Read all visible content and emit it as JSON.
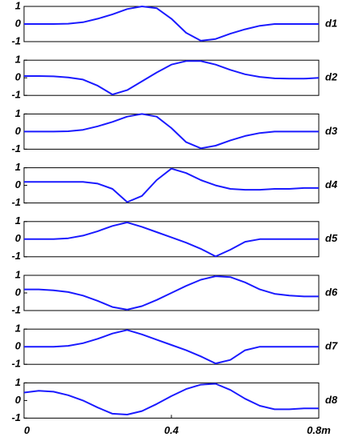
{
  "chart_data": [
    {
      "type": "line",
      "label": "d1",
      "color": "#1a1aff",
      "xlim": [
        0,
        0.8
      ],
      "ylim": [
        -1,
        1
      ],
      "yticks": [
        1,
        0,
        -1
      ],
      "x": [
        0,
        0.04,
        0.08,
        0.12,
        0.16,
        0.2,
        0.24,
        0.28,
        0.32,
        0.36,
        0.4,
        0.44,
        0.48,
        0.52,
        0.56,
        0.6,
        0.64,
        0.68,
        0.72,
        0.76,
        0.8
      ],
      "values": [
        0,
        0,
        0,
        0.02,
        0.1,
        0.3,
        0.55,
        0.85,
        1.0,
        0.9,
        0.3,
        -0.5,
        -0.95,
        -0.85,
        -0.55,
        -0.3,
        -0.1,
        0,
        0,
        0,
        0
      ]
    },
    {
      "type": "line",
      "label": "d2",
      "color": "#1a1aff",
      "xlim": [
        0,
        0.8
      ],
      "ylim": [
        -1,
        1
      ],
      "yticks": [
        1,
        0,
        -1
      ],
      "x": [
        0,
        0.04,
        0.08,
        0.12,
        0.16,
        0.2,
        0.24,
        0.28,
        0.32,
        0.36,
        0.4,
        0.44,
        0.48,
        0.52,
        0.56,
        0.6,
        0.64,
        0.68,
        0.72,
        0.76,
        0.8
      ],
      "values": [
        0.1,
        0.1,
        0.08,
        0.02,
        -0.1,
        -0.45,
        -0.95,
        -0.7,
        -0.2,
        0.3,
        0.75,
        0.95,
        0.95,
        0.75,
        0.45,
        0.2,
        0.05,
        -0.03,
        -0.05,
        -0.05,
        0
      ]
    },
    {
      "type": "line",
      "label": "d3",
      "color": "#1a1aff",
      "xlim": [
        0,
        0.8
      ],
      "ylim": [
        -1,
        1
      ],
      "yticks": [
        1,
        0,
        -1
      ],
      "x": [
        0,
        0.04,
        0.08,
        0.12,
        0.16,
        0.2,
        0.24,
        0.28,
        0.32,
        0.36,
        0.4,
        0.44,
        0.48,
        0.52,
        0.56,
        0.6,
        0.64,
        0.68,
        0.72,
        0.76,
        0.8
      ],
      "values": [
        0,
        0,
        0,
        0.02,
        0.1,
        0.3,
        0.55,
        0.85,
        1.0,
        0.85,
        0.2,
        -0.6,
        -0.95,
        -0.8,
        -0.5,
        -0.25,
        -0.08,
        0,
        0,
        0,
        0
      ]
    },
    {
      "type": "line",
      "label": "d4",
      "color": "#1a1aff",
      "xlim": [
        0,
        0.8
      ],
      "ylim": [
        -1,
        1
      ],
      "yticks": [
        1,
        0,
        -1
      ],
      "x": [
        0,
        0.04,
        0.08,
        0.12,
        0.16,
        0.2,
        0.24,
        0.28,
        0.32,
        0.36,
        0.4,
        0.44,
        0.48,
        0.52,
        0.56,
        0.6,
        0.64,
        0.68,
        0.72,
        0.76,
        0.8
      ],
      "values": [
        0.2,
        0.2,
        0.2,
        0.2,
        0.2,
        0.1,
        -0.2,
        -0.95,
        -0.6,
        0.3,
        0.95,
        0.7,
        0.3,
        0.0,
        -0.2,
        -0.25,
        -0.25,
        -0.2,
        -0.2,
        -0.15,
        -0.15
      ]
    },
    {
      "type": "line",
      "label": "d5",
      "color": "#1a1aff",
      "xlim": [
        0,
        0.8
      ],
      "ylim": [
        -1,
        1
      ],
      "yticks": [
        1,
        0,
        -1
      ],
      "x": [
        0,
        0.04,
        0.08,
        0.12,
        0.16,
        0.2,
        0.24,
        0.28,
        0.32,
        0.36,
        0.4,
        0.44,
        0.48,
        0.52,
        0.56,
        0.6,
        0.64,
        0.68,
        0.72,
        0.76,
        0.8
      ],
      "values": [
        0,
        0,
        0,
        0.05,
        0.2,
        0.45,
        0.75,
        0.95,
        0.7,
        0.4,
        0.1,
        -0.2,
        -0.55,
        -0.98,
        -0.6,
        -0.15,
        0,
        0,
        0,
        0,
        0
      ]
    },
    {
      "type": "line",
      "label": "d6",
      "color": "#1a1aff",
      "xlim": [
        0,
        0.8
      ],
      "ylim": [
        -1,
        1
      ],
      "yticks": [
        1,
        0,
        -1
      ],
      "x": [
        0,
        0.04,
        0.08,
        0.12,
        0.16,
        0.2,
        0.24,
        0.28,
        0.32,
        0.36,
        0.4,
        0.44,
        0.48,
        0.52,
        0.56,
        0.6,
        0.64,
        0.68,
        0.72,
        0.76,
        0.8
      ],
      "values": [
        0.2,
        0.2,
        0.15,
        0.05,
        -0.15,
        -0.45,
        -0.8,
        -0.95,
        -0.75,
        -0.4,
        0.0,
        0.4,
        0.75,
        0.95,
        0.9,
        0.6,
        0.2,
        -0.05,
        -0.15,
        -0.2,
        -0.2
      ]
    },
    {
      "type": "line",
      "label": "d7",
      "color": "#1a1aff",
      "xlim": [
        0,
        0.8
      ],
      "ylim": [
        -1,
        1
      ],
      "yticks": [
        1,
        0,
        -1
      ],
      "x": [
        0,
        0.04,
        0.08,
        0.12,
        0.16,
        0.2,
        0.24,
        0.28,
        0.32,
        0.36,
        0.4,
        0.44,
        0.48,
        0.52,
        0.56,
        0.6,
        0.64,
        0.68,
        0.72,
        0.76,
        0.8
      ],
      "values": [
        0,
        0,
        0,
        0.05,
        0.2,
        0.45,
        0.75,
        0.95,
        0.7,
        0.4,
        0.1,
        -0.2,
        -0.55,
        -0.95,
        -0.75,
        -0.2,
        0,
        0,
        0,
        0,
        0
      ]
    },
    {
      "type": "line",
      "label": "d8",
      "color": "#1a1aff",
      "xlim": [
        0,
        0.8
      ],
      "ylim": [
        -1,
        1
      ],
      "yticks": [
        1,
        0,
        -1
      ],
      "xticks": [
        0,
        0.4,
        {
          "value": 0.8,
          "label": "0.8m"
        }
      ],
      "x": [
        0,
        0.04,
        0.08,
        0.12,
        0.16,
        0.2,
        0.24,
        0.28,
        0.32,
        0.36,
        0.4,
        0.44,
        0.48,
        0.52,
        0.56,
        0.6,
        0.64,
        0.68,
        0.72,
        0.76,
        0.8
      ],
      "values": [
        0.45,
        0.55,
        0.5,
        0.3,
        0.0,
        -0.4,
        -0.75,
        -0.8,
        -0.6,
        -0.2,
        0.25,
        0.65,
        0.9,
        0.95,
        0.6,
        0.1,
        -0.3,
        -0.5,
        -0.5,
        -0.45,
        -0.45
      ]
    }
  ]
}
